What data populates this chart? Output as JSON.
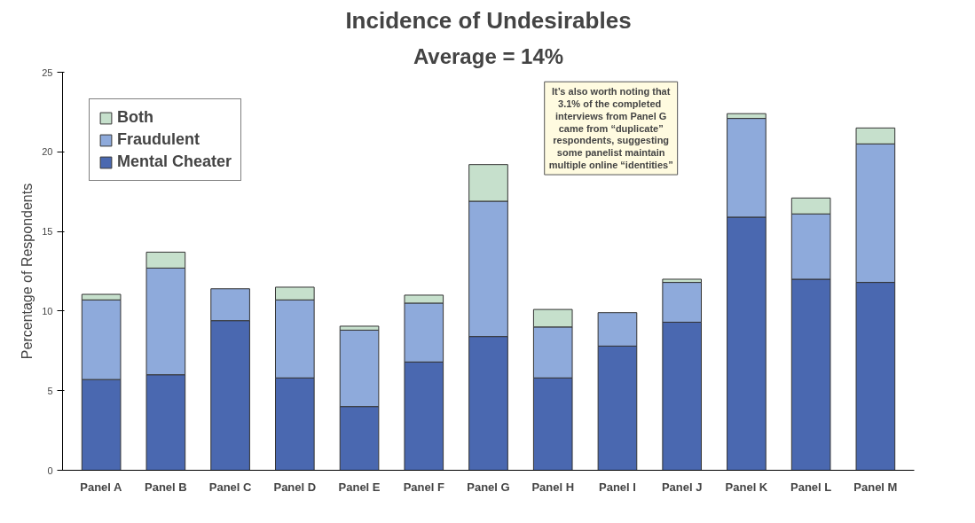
{
  "chart_data": {
    "type": "bar",
    "title": "Incidence of Undesirables",
    "subtitle": "Average = 14%",
    "ylabel": "Percentage of Respondents",
    "categories": [
      "Panel A",
      "Panel B",
      "Panel C",
      "Panel D",
      "Panel E",
      "Panel F",
      "Panel G",
      "Panel H",
      "Panel I",
      "Panel J",
      "Panel K",
      "Panel L",
      "Panel M"
    ],
    "stacked": true,
    "series": [
      {
        "name": "Mental Cheater",
        "color": "#4a68b0",
        "values": [
          5.7,
          6.0,
          9.4,
          5.8,
          4.0,
          6.8,
          8.4,
          5.8,
          7.8,
          9.3,
          15.9,
          12.0,
          11.8
        ]
      },
      {
        "name": "Fraudulent",
        "color": "#8eaadb",
        "values": [
          5.0,
          6.7,
          2.0,
          4.9,
          4.8,
          3.7,
          8.5,
          3.2,
          2.1,
          2.5,
          6.2,
          4.1,
          8.7
        ]
      },
      {
        "name": "Both",
        "color": "#c6e0cc",
        "values": [
          0.35,
          1.0,
          null,
          0.8,
          0.25,
          0.5,
          2.3,
          1.1,
          null,
          0.2,
          0.3,
          1.0,
          1.0
        ]
      }
    ],
    "ylim": [
      0,
      25
    ],
    "yticks": [
      0,
      5,
      10,
      15,
      20,
      25
    ],
    "grid": false,
    "legend": "top left",
    "annotations": [
      "It’s also worth noting that\n3.1%  of the completed\ninterviews from Panel G\ncame from “duplicate”\nrespondents, suggesting\nsome panelist maintain\nmultiple online “identities”"
    ]
  }
}
